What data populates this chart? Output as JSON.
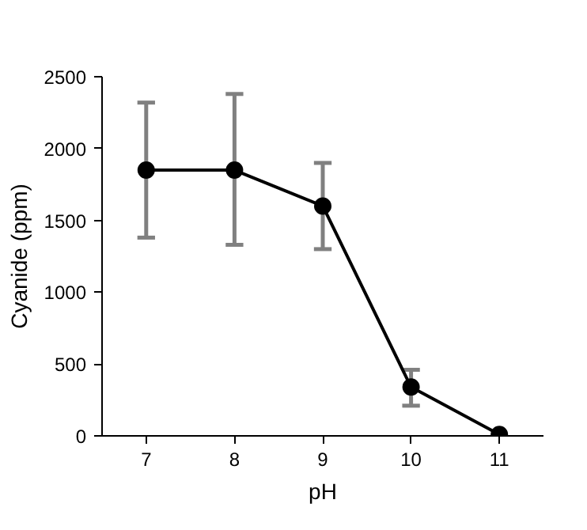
{
  "chart_data": {
    "type": "line",
    "xlabel": "pH",
    "ylabel": "Cyanide (ppm)",
    "x": [
      7,
      8,
      9,
      10,
      11
    ],
    "series": [
      {
        "color": "#000000",
        "values": [
          1850,
          1850,
          1600,
          340,
          10
        ],
        "errors": [
          [
            1380,
            2320
          ],
          [
            1330,
            2380
          ],
          [
            1300,
            1900
          ],
          [
            210,
            460
          ],
          null
        ]
      }
    ],
    "xlim": [
      6.5,
      11.5
    ],
    "ylim": [
      0,
      2500
    ],
    "xticks": [
      7,
      8,
      9,
      10,
      11
    ],
    "yticks": [
      0,
      500,
      1000,
      1500,
      2000,
      2500
    ],
    "grid": false,
    "marker": "circle",
    "line_style": "solid"
  }
}
